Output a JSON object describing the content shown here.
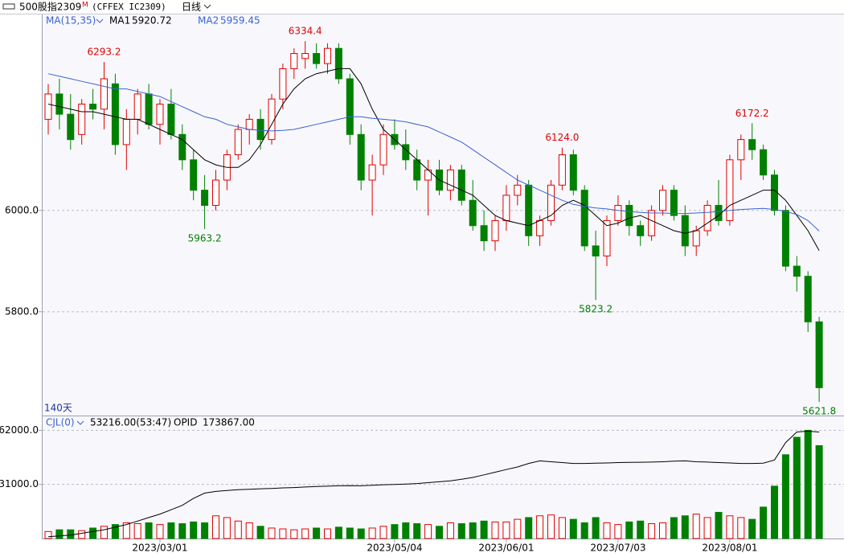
{
  "chart_data": {
    "type": "candlestick",
    "title": "500股指2309",
    "title_mark": "M",
    "subtitle": "(CFFEX IC2309)",
    "period": "日线",
    "indicator": "MA(15,35)",
    "days_label": "140天",
    "categories": [
      null,
      null,
      null,
      null,
      null,
      null,
      null,
      null,
      null,
      null,
      "2023/03/01",
      null,
      null,
      null,
      null,
      null,
      null,
      null,
      null,
      null,
      null,
      null,
      null,
      null,
      null,
      null,
      null,
      null,
      null,
      null,
      null,
      "2023/05/04",
      null,
      null,
      null,
      null,
      null,
      null,
      null,
      null,
      null,
      "2023/06/01",
      null,
      null,
      null,
      null,
      null,
      null,
      null,
      null,
      null,
      "2023/07/03",
      null,
      null,
      null,
      null,
      null,
      null,
      null,
      null,
      null,
      "2023/08/01",
      null,
      null,
      null,
      null,
      null,
      null,
      null,
      null
    ],
    "open": [
      6180,
      6230,
      6190,
      6150,
      6210,
      6200,
      6250,
      6130,
      6180,
      6230,
      6170,
      6210,
      6150,
      6100,
      6040,
      6010,
      6060,
      6110,
      6160,
      6180,
      6140,
      6220,
      6280,
      6300,
      6310,
      6290,
      6320,
      6260,
      6150,
      6060,
      6090,
      6150,
      6130,
      6100,
      6060,
      6080,
      6040,
      6080,
      6020,
      5970,
      5940,
      5980,
      6030,
      6050,
      5950,
      5980,
      6050,
      6110,
      6040,
      5930,
      5910,
      5980,
      6010,
      5970,
      5950,
      6000,
      6040,
      5990,
      5930,
      5960,
      6010,
      5980,
      6100,
      6140,
      6120,
      6070,
      6000,
      5890,
      5870,
      5780
    ],
    "high": [
      6250,
      6260,
      6230,
      6220,
      6240,
      6293.2,
      6270,
      6200,
      6240,
      6250,
      6220,
      6240,
      6170,
      6120,
      6070,
      6080,
      6120,
      6170,
      6190,
      6200,
      6230,
      6290,
      6320,
      6334.4,
      6330,
      6330,
      6330,
      6270,
      6170,
      6110,
      6170,
      6180,
      6160,
      6120,
      6100,
      6100,
      6090,
      6090,
      6060,
      6000,
      5990,
      6050,
      6070,
      6060,
      5990,
      6060,
      6124,
      6120,
      6050,
      5960,
      5990,
      6030,
      6020,
      5980,
      6010,
      6050,
      6050,
      6010,
      5970,
      6020,
      6060,
      6110,
      6150,
      6172.2,
      6130,
      6080,
      6010,
      5910,
      5880,
      5790
    ],
    "low": [
      6150,
      6160,
      6120,
      6130,
      6180,
      6160,
      6110,
      6080,
      6150,
      6160,
      6130,
      6140,
      6080,
      6020,
      5963.2,
      6000,
      6040,
      6100,
      6130,
      6120,
      6130,
      6200,
      6260,
      6280,
      6280,
      6270,
      6250,
      6130,
      6040,
      5990,
      6070,
      6120,
      6080,
      6040,
      5990,
      6030,
      6020,
      6010,
      5960,
      5920,
      5920,
      5960,
      6010,
      5930,
      5930,
      5970,
      6040,
      6030,
      5920,
      5823.2,
      5890,
      5970,
      5950,
      5930,
      5940,
      5990,
      5980,
      5910,
      5910,
      5950,
      5970,
      5970,
      6060,
      6100,
      6060,
      5990,
      5880,
      5840,
      5760,
      5621.8
    ],
    "close": [
      6230,
      6190,
      6140,
      6210,
      6200,
      6260,
      6130,
      6180,
      6230,
      6170,
      6210,
      6150,
      6100,
      6040,
      6010,
      6060,
      6110,
      6160,
      6180,
      6140,
      6220,
      6280,
      6310,
      6310,
      6290,
      6320,
      6260,
      6150,
      6060,
      6090,
      6150,
      6130,
      6100,
      6060,
      6080,
      6040,
      6080,
      6020,
      5970,
      5940,
      5980,
      6030,
      6050,
      5950,
      5980,
      6050,
      6110,
      6040,
      5930,
      5910,
      5980,
      6010,
      5970,
      5950,
      6000,
      6040,
      5990,
      5930,
      5960,
      6010,
      5980,
      6100,
      6140,
      6120,
      6070,
      6000,
      5890,
      5870,
      5780,
      5650
    ],
    "up_color": "#e00000",
    "down_color": "#008000",
    "ylim": [
      5595,
      6387
    ],
    "yticks": [
      {
        "value": 5800,
        "label": "5800.0"
      },
      {
        "value": 6000,
        "label": "6000.0"
      }
    ],
    "grid": true,
    "lines": [
      {
        "name": "MA1",
        "color": "#000000",
        "values": [
          6210,
          6205,
          6200,
          6195,
          6195,
          6190,
          6185,
          6180,
          6180,
          6170,
          6160,
          6150,
          6140,
          6120,
          6100,
          6090,
          6085,
          6085,
          6100,
          6130,
          6170,
          6210,
          6240,
          6260,
          6270,
          6275,
          6280,
          6280,
          6250,
          6200,
          6160,
          6140,
          6120,
          6100,
          6080,
          6060,
          6050,
          6040,
          6030,
          6010,
          5990,
          5980,
          5975,
          5970,
          5980,
          5990,
          6010,
          6020,
          6010,
          5990,
          5970,
          5975,
          5985,
          5990,
          5980,
          5970,
          5960,
          5955,
          5960,
          5975,
          5990,
          6010,
          6020,
          6030,
          6040,
          6040,
          6020,
          5990,
          5960,
          5920.72
        ]
      },
      {
        "name": "MA2",
        "color": "#3a62d0",
        "values": [
          6270,
          6265,
          6260,
          6255,
          6250,
          6245,
          6240,
          6240,
          6235,
          6230,
          6225,
          6215,
          6205,
          6195,
          6185,
          6180,
          6170,
          6165,
          6160,
          6158,
          6157,
          6158,
          6160,
          6165,
          6170,
          6175,
          6180,
          6185,
          6185,
          6182,
          6180,
          6178,
          6175,
          6170,
          6165,
          6155,
          6145,
          6135,
          6120,
          6105,
          6090,
          6075,
          6060,
          6050,
          6040,
          6030,
          6020,
          6012,
          6008,
          6005,
          6003,
          6000,
          5998,
          5996,
          5995,
          5995,
          5994,
          5994,
          5995,
          5996,
          5998,
          6000,
          6002,
          6003,
          6004,
          6002,
          5998,
          5992,
          5980,
          5959.45
        ]
      }
    ],
    "annotations": [
      {
        "label": "6293.2",
        "value": 6293.2,
        "index": 5
      },
      {
        "label": "5963.2",
        "value": 5963.2,
        "index": 14
      },
      {
        "label": "6334.4",
        "value": 6334.4,
        "index": 23
      },
      {
        "label": "6124.0",
        "value": 6124,
        "index": 46
      },
      {
        "label": "5823.2",
        "value": 5823.2,
        "index": 49
      },
      {
        "label": "6172.2",
        "value": 6172.2,
        "index": 63
      },
      {
        "label": "5621.8",
        "value": 5621.8,
        "index": 69
      }
    ],
    "volume": {
      "title": "CJL(0)",
      "readout": "53216.00(53:47)",
      "values": [
        4000,
        5000,
        5000,
        4500,
        6000,
        7000,
        8000,
        9000,
        8500,
        9000,
        8000,
        9000,
        8500,
        9500,
        9000,
        13000,
        12000,
        10000,
        9000,
        7000,
        6000,
        5500,
        5000,
        5500,
        6000,
        5500,
        6500,
        6000,
        5500,
        6000,
        7000,
        8000,
        9000,
        8500,
        8000,
        7000,
        9000,
        8500,
        9000,
        10000,
        9500,
        9500,
        11000,
        12000,
        13000,
        13500,
        12000,
        11000,
        9000,
        12000,
        9000,
        8000,
        9500,
        10000,
        8500,
        9000,
        12000,
        13000,
        14000,
        12000,
        15000,
        13000,
        12000,
        11000,
        18000,
        30000,
        48000,
        58000,
        62000,
        53216
      ],
      "ylim": [
        0,
        70000
      ],
      "yticks": [
        {
          "value": 31000,
          "label": "31000.0"
        },
        {
          "value": 62000,
          "label": "62000.0"
        }
      ],
      "opid": {
        "name": "OPID",
        "readout": "173867.00",
        "color": "#000000",
        "values": [
          2850,
          4300,
          5700,
          8550,
          11400,
          14250,
          18500,
          22800,
          28500,
          34200,
          39900,
          47000,
          54150,
          65550,
          74100,
          76950,
          78400,
          79800,
          80400,
          81200,
          81800,
          82650,
          83200,
          84100,
          84900,
          85500,
          86100,
          86350,
          86100,
          86900,
          87800,
          88350,
          88900,
          89800,
          91200,
          92600,
          94050,
          96900,
          99750,
          104000,
          108300,
          112600,
          116850,
          122550,
          126800,
          125400,
          124000,
          122550,
          122550,
          123100,
          123400,
          124000,
          124250,
          124550,
          124850,
          125400,
          126250,
          126800,
          125400,
          124850,
          124000,
          123400,
          122550,
          122550,
          123100,
          128250,
          156750,
          173850,
          175300,
          173867
        ],
        "ylim": [
          0,
          199500
        ]
      }
    }
  }
}
